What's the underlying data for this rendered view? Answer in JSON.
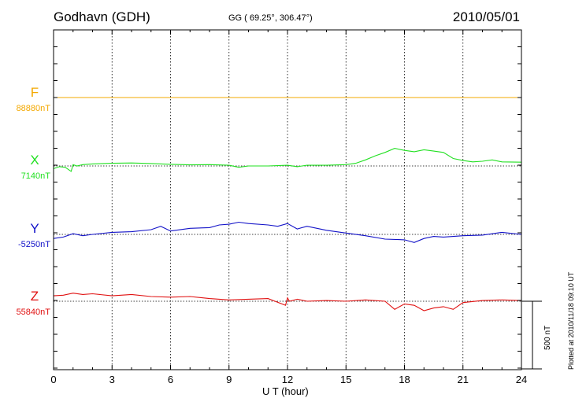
{
  "header": {
    "station": "Godhavn (GDH)",
    "coords": "GG ( 69.25°, 306.47°)",
    "date": "2010/05/01"
  },
  "footer": {
    "plotted": "Plotted at 2010/11/18 09:10 UT"
  },
  "colors": {
    "F": "#f3a800",
    "X": "#22e022",
    "Y": "#1212c8",
    "Z": "#e01010",
    "axis": "#000000",
    "grid": "#000000"
  },
  "chart_data": {
    "type": "line",
    "title": "",
    "xlabel": "U T (hour)",
    "ylabel": "",
    "xlim": [
      0,
      24
    ],
    "x_ticks": [
      0,
      3,
      6,
      9,
      12,
      15,
      18,
      21,
      24
    ],
    "grid": "dotted vertical at each 3 hours; dotted baseline per component",
    "scale_bar": {
      "value": 500,
      "label": "500 nT"
    },
    "series": [
      {
        "name": "F",
        "baseline": "88880nT",
        "x": [
          0,
          24
        ],
        "y": [
          0,
          0
        ]
      },
      {
        "name": "X",
        "baseline": "7140nT",
        "x": [
          0,
          0.3,
          0.6,
          0.9,
          1.0,
          1.2,
          1.5,
          2,
          3,
          4,
          5,
          6,
          7,
          8,
          9,
          9.5,
          10,
          11,
          12,
          12.5,
          13,
          14,
          15,
          15.5,
          16,
          16.5,
          17,
          17.5,
          18,
          18.5,
          19,
          19.5,
          20,
          20.5,
          21,
          21.5,
          22,
          22.5,
          23,
          24
        ],
        "y": [
          -20,
          -5,
          -10,
          -40,
          10,
          0,
          10,
          15,
          20,
          22,
          18,
          12,
          8,
          10,
          5,
          -10,
          0,
          0,
          5,
          -5,
          5,
          5,
          10,
          20,
          45,
          75,
          100,
          130,
          115,
          105,
          120,
          110,
          100,
          55,
          40,
          30,
          35,
          45,
          30,
          28
        ]
      },
      {
        "name": "Y",
        "baseline": "-5250nT",
        "x": [
          0,
          0.5,
          1,
          1.5,
          2,
          3,
          4,
          5,
          5.5,
          6,
          7,
          8,
          8.5,
          9,
          9.5,
          10,
          11,
          11.5,
          12,
          12.5,
          13,
          14,
          15,
          16,
          17,
          18,
          18.5,
          19,
          19.5,
          20,
          21,
          22,
          23,
          24
        ],
        "y": [
          -30,
          -20,
          5,
          -10,
          0,
          15,
          20,
          35,
          60,
          25,
          45,
          50,
          70,
          75,
          90,
          80,
          70,
          60,
          80,
          40,
          60,
          30,
          10,
          -10,
          -35,
          -40,
          -60,
          -30,
          -15,
          -20,
          -10,
          -5,
          15,
          0
        ]
      },
      {
        "name": "Z",
        "baseline": "55840nT",
        "x": [
          0,
          0.5,
          1,
          1.5,
          2,
          3,
          4,
          5,
          6,
          7,
          8,
          9,
          10,
          11,
          11.9,
          12,
          12.1,
          12.5,
          13,
          14,
          15,
          16,
          17,
          17.5,
          18,
          18.5,
          19,
          19.5,
          20,
          20.5,
          21,
          22,
          23,
          24
        ],
        "y": [
          40,
          45,
          60,
          50,
          55,
          40,
          50,
          35,
          30,
          35,
          20,
          10,
          15,
          20,
          -30,
          25,
          0,
          15,
          0,
          5,
          0,
          10,
          0,
          -60,
          -20,
          -30,
          -70,
          -50,
          -40,
          -60,
          -10,
          5,
          10,
          5
        ]
      }
    ]
  }
}
